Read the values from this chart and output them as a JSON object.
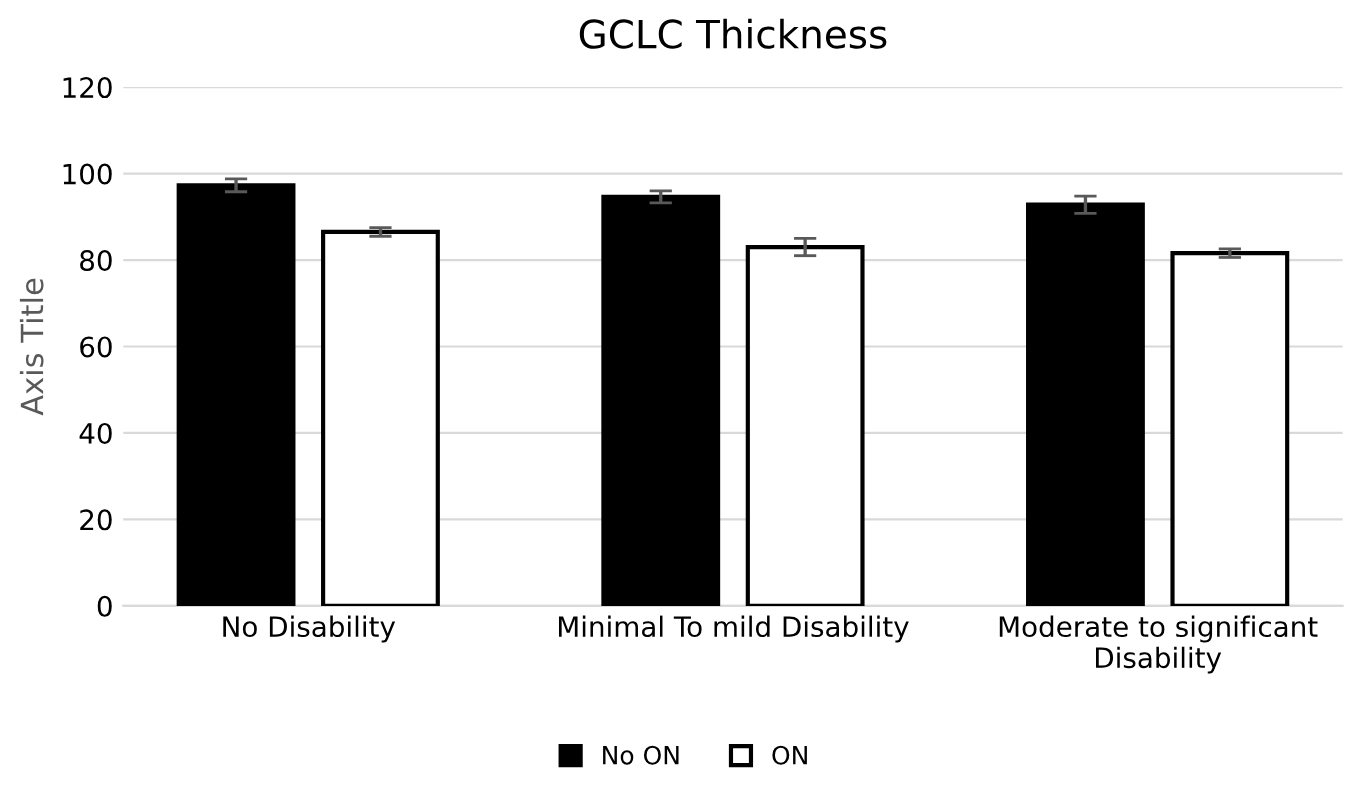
{
  "chart_data": {
    "type": "bar",
    "title": "GCLC Thickness",
    "ylabel": "Axis Title",
    "categories": [
      "No Disability",
      "Minimal To mild Disability",
      "Moderate to significant\nDisability"
    ],
    "series": [
      {
        "name": "No ON",
        "color": "#000000",
        "values": [
          97.3,
          94.6,
          92.8
        ],
        "errors": [
          1.5,
          1.4,
          2
        ]
      },
      {
        "name": "ON",
        "color": "#ffffff",
        "values": [
          86.5,
          83.0,
          81.6
        ],
        "errors": [
          1,
          2,
          1
        ]
      }
    ],
    "ylim": [
      0,
      120
    ],
    "yticks": [
      0,
      20,
      40,
      60,
      80,
      100,
      120
    ],
    "grid": "y",
    "legend": "bottom"
  }
}
